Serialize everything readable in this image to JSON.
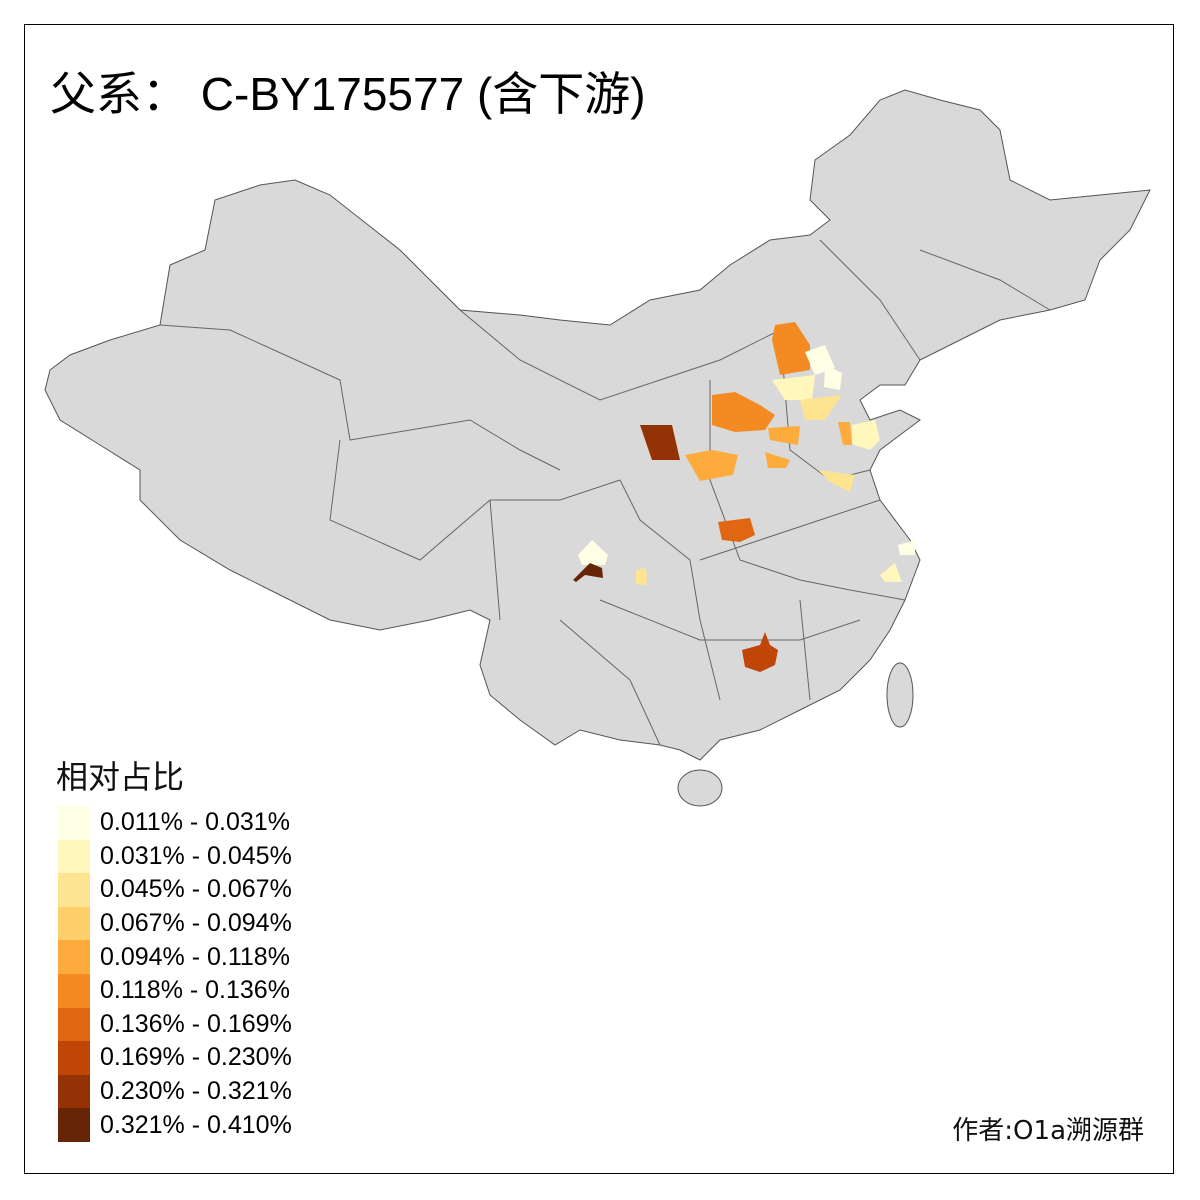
{
  "title": "父系： C-BY175577 (含下游)",
  "legend": {
    "title": "相对占比",
    "items": [
      {
        "label": "0.011% - 0.031%",
        "color": "#FFFFE5"
      },
      {
        "label": "0.031% - 0.045%",
        "color": "#FFF7BC"
      },
      {
        "label": "0.045% - 0.067%",
        "color": "#FEE391"
      },
      {
        "label": "0.067% - 0.094%",
        "color": "#FECF6A"
      },
      {
        "label": "0.094% - 0.118%",
        "color": "#FDAB3C"
      },
      {
        "label": "0.118% - 0.136%",
        "color": "#F38A22"
      },
      {
        "label": "0.136% - 0.169%",
        "color": "#E06612"
      },
      {
        "label": "0.169% - 0.230%",
        "color": "#C04607"
      },
      {
        "label": "0.230% - 0.321%",
        "color": "#933205"
      },
      {
        "label": "0.321% - 0.410%",
        "color": "#662506"
      }
    ]
  },
  "author": "作者:O1a溯源群",
  "colors": {
    "base_land": "#D9D9D9",
    "border": "#666666"
  }
}
